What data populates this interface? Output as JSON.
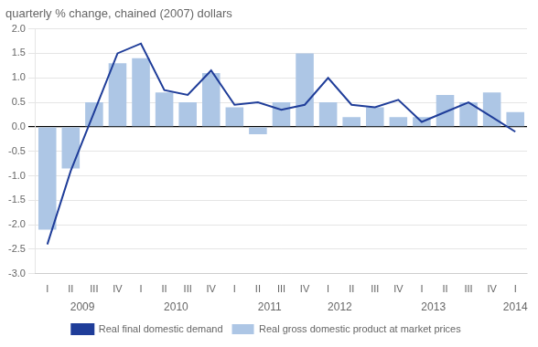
{
  "chart_data": {
    "type": "bar",
    "title": "quarterly % change, chained (2007) dollars",
    "categories": [
      "I",
      "II",
      "III",
      "IV",
      "I",
      "II",
      "III",
      "IV",
      "I",
      "II",
      "III",
      "IV",
      "I",
      "II",
      "III",
      "IV",
      "I",
      "II",
      "III",
      "IV",
      "I"
    ],
    "series": [
      {
        "name": "Real gross domestic product at market prices",
        "type": "bar",
        "color": "#adc6e5",
        "values": [
          -2.1,
          -0.85,
          0.5,
          1.3,
          1.4,
          0.7,
          0.5,
          1.1,
          0.4,
          -0.15,
          0.5,
          1.5,
          0.5,
          0.2,
          0.4,
          0.2,
          0.2,
          0.65,
          0.5,
          0.7,
          0.3
        ]
      },
      {
        "name": "Real final domestic demand",
        "type": "line",
        "color": "#1f3d99",
        "values": [
          -2.4,
          -0.9,
          0.3,
          1.5,
          1.7,
          0.75,
          0.65,
          1.15,
          0.45,
          0.5,
          0.35,
          0.45,
          1.0,
          0.45,
          0.4,
          0.55,
          0.1,
          0.3,
          0.5,
          0.2,
          -0.1
        ]
      }
    ],
    "ylim": [
      -3.0,
      2.0
    ],
    "yticks": [
      {
        "value": -3.0,
        "label": "-3.0"
      },
      -2.5,
      {
        "value": -2.0,
        "label": "-2.0"
      },
      -1.5,
      {
        "value": -1.0,
        "label": "-1.0"
      },
      -0.5,
      {
        "value": 0.0,
        "label": "0.0"
      },
      0.5,
      {
        "value": 1.0,
        "label": "1.0"
      },
      1.5,
      {
        "value": 2.0,
        "label": "2.0"
      }
    ],
    "grid": true,
    "legend": "bottom",
    "annotations": [
      {
        "text": "2009",
        "x": 1.5
      },
      {
        "text": "2010",
        "x": 5.5
      },
      {
        "text": "2011",
        "x": 9.5
      },
      {
        "text": "2012",
        "x": 12.5
      },
      {
        "text": "2013",
        "x": 16.5
      },
      {
        "text": "2014",
        "x": 20
      }
    ]
  }
}
